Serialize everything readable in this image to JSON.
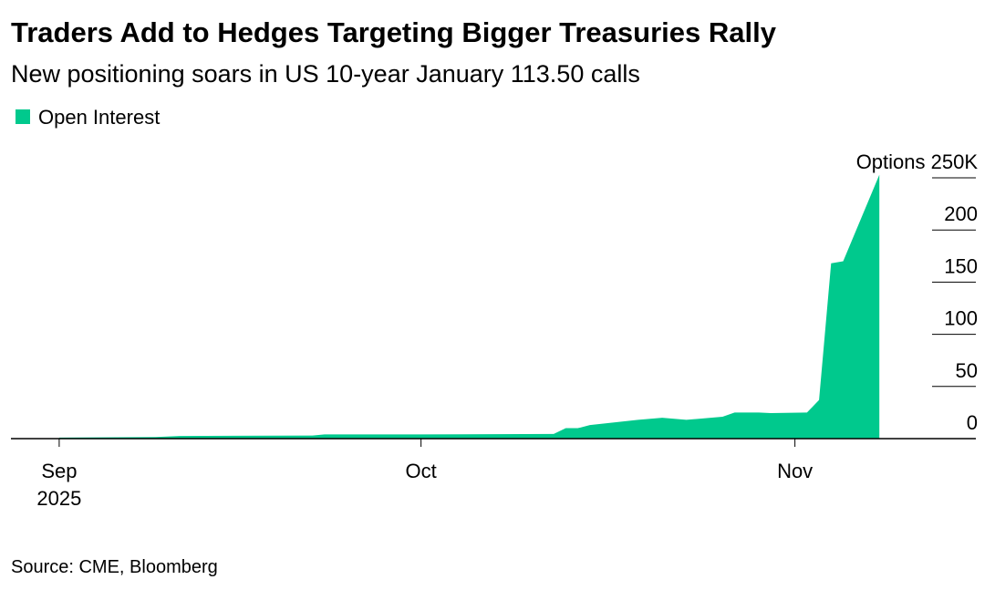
{
  "chart_data": {
    "type": "area",
    "title": "Traders Add to Hedges Targeting Bigger Treasuries Rally",
    "subtitle": "New positioning soars in US 10-year January 113.50 calls",
    "source": "Source: CME, Bloomberg",
    "x": [
      "2025-09-01",
      "2025-09-09",
      "2025-09-11",
      "2025-09-22",
      "2025-09-23",
      "2025-10-01",
      "2025-10-12",
      "2025-10-13",
      "2025-10-14",
      "2025-10-15",
      "2025-10-19",
      "2025-10-21",
      "2025-10-23",
      "2025-10-26",
      "2025-10-27",
      "2025-10-29",
      "2025-10-30",
      "2025-11-02",
      "2025-11-03",
      "2025-11-04",
      "2025-11-05",
      "2025-11-08"
    ],
    "series": [
      {
        "name": "Open Interest",
        "color": "#00c98d",
        "values": [
          1,
          1.5,
          2.5,
          3,
          4,
          4,
          4.5,
          10,
          10,
          13,
          18,
          20,
          18,
          21,
          25,
          25,
          24.5,
          25,
          37,
          168,
          170,
          253
        ]
      }
    ],
    "xlim": [
      "2025-08-28",
      "2025-11-16"
    ],
    "xticks": [
      {
        "value": "2025-09-01",
        "label": "Sep 2025"
      },
      {
        "value": "2025-10-01",
        "label": "Oct"
      },
      {
        "value": "2025-11-01",
        "label": "Nov"
      }
    ],
    "ylim": [
      0,
      250
    ],
    "yticks": [
      0,
      50,
      100,
      150,
      200,
      {
        "value": 250,
        "label": "Options 250K"
      }
    ],
    "legend": "top-left"
  }
}
